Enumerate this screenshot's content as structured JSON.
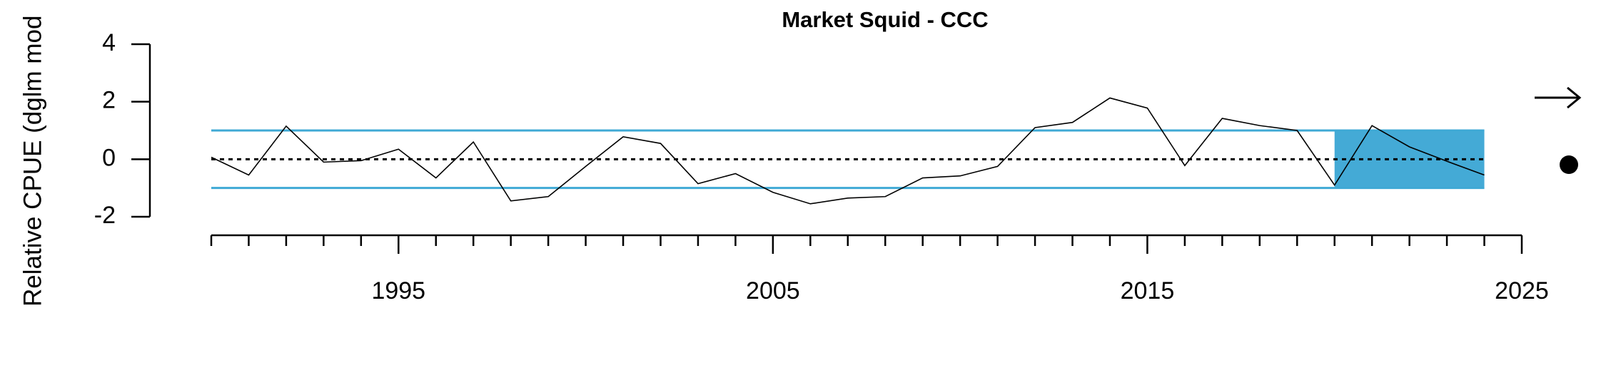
{
  "chart_data": {
    "type": "line",
    "title": "Market Squid - CCC",
    "y_label": "Relative CPUE (dglm mod",
    "x": [
      1990,
      1991,
      1992,
      1993,
      1994,
      1995,
      1996,
      1997,
      1998,
      1999,
      2000,
      2001,
      2002,
      2003,
      2004,
      2005,
      2006,
      2007,
      2008,
      2009,
      2010,
      2011,
      2012,
      2013,
      2014,
      2015,
      2016,
      2017,
      2018,
      2019,
      2020,
      2021,
      2022,
      2023,
      2024
    ],
    "series": [
      {
        "color": "#000000",
        "values": [
          0.07,
          -0.55,
          1.15,
          -0.1,
          -0.05,
          0.35,
          -0.65,
          0.6,
          -1.45,
          -1.3,
          -0.25,
          0.78,
          0.55,
          -0.85,
          -0.5,
          -1.15,
          -1.55,
          -1.35,
          -1.3,
          -0.65,
          -0.58,
          -0.25,
          1.1,
          1.28,
          2.13,
          1.78,
          -0.22,
          1.42,
          1.17,
          1.0,
          -0.9,
          1.17,
          0.43,
          -0.07,
          -0.55
        ]
      }
    ],
    "xlim": [
      1990,
      2025
    ],
    "xticks": [
      1995,
      2005,
      2015,
      2025
    ],
    "xminor_ticks": [
      1990,
      1991,
      1992,
      1993,
      1994,
      1996,
      1997,
      1998,
      1999,
      2000,
      2001,
      2002,
      2003,
      2004,
      2006,
      2007,
      2008,
      2009,
      2010,
      2011,
      2012,
      2013,
      2014,
      2016,
      2017,
      2018,
      2019,
      2020,
      2021,
      2022,
      2023,
      2024
    ],
    "ylim": [
      -2,
      4
    ],
    "yticks": [
      -2,
      0,
      2,
      4
    ],
    "reference_lines": [
      {
        "value": 1,
        "color": "#3fa9d5"
      },
      {
        "value": -1,
        "color": "#3fa9d5"
      }
    ],
    "mean_line": {
      "value": 0,
      "color": "#000000"
    },
    "shade": {
      "x": [
        2020,
        2024
      ],
      "y": [
        -1,
        1
      ],
      "color": "#44aad6"
    }
  }
}
